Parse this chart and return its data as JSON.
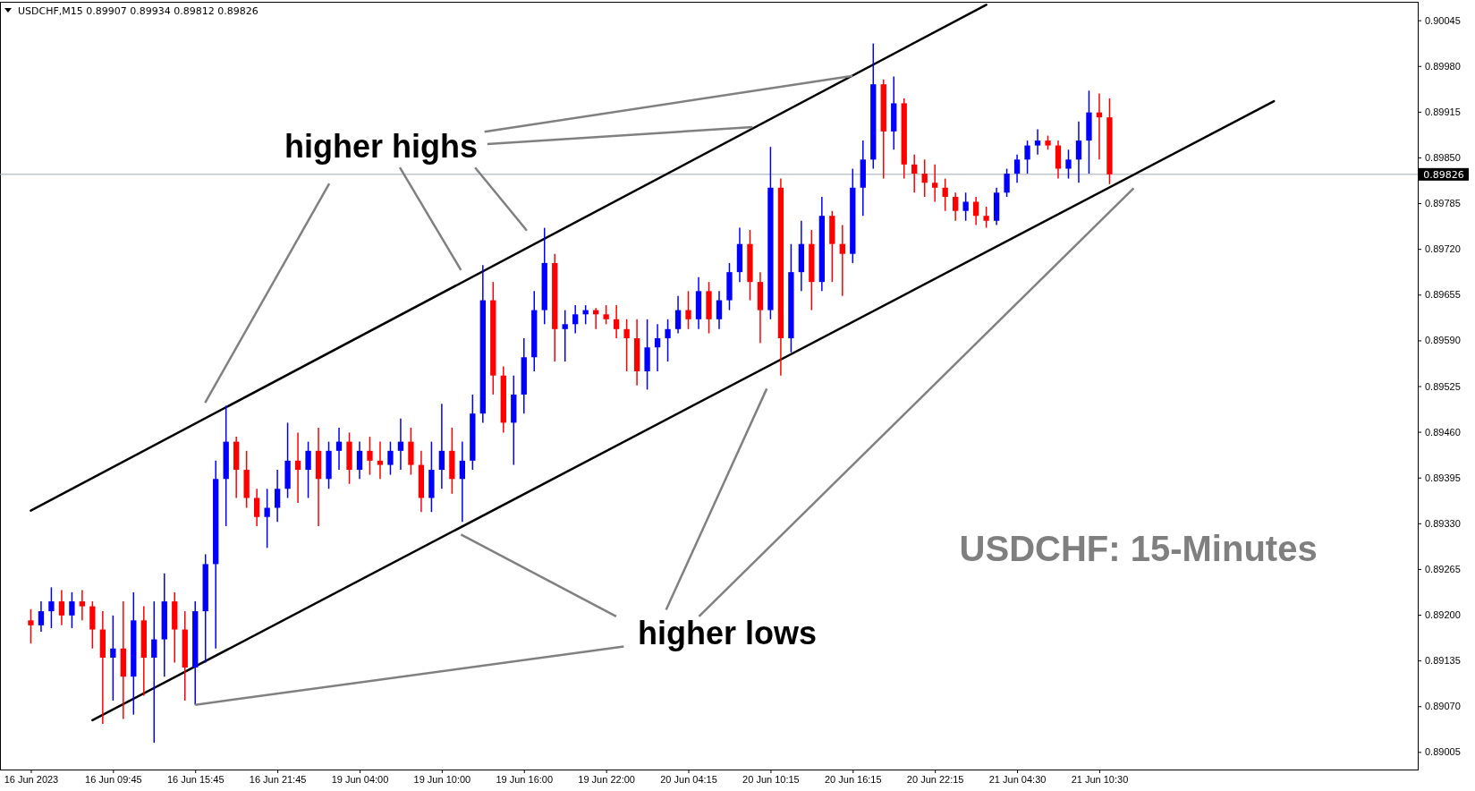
{
  "chart_data": {
    "type": "candlestick",
    "title": "USDCHF,M15  0.89907 0.89934 0.89812 0.89826",
    "annotations": [
      {
        "text": "higher highs",
        "x": "20 Jun 16:15",
        "y": 0.89966
      },
      {
        "text": "higher lows",
        "x": "16 Jun 15:45",
        "y": 0.89072
      },
      "USDCHF: 15-Minutes"
    ],
    "categories": [
      "16 Jun 2023",
      null,
      null,
      null,
      null,
      null,
      null,
      null,
      "16 Jun 09:45",
      null,
      null,
      null,
      null,
      null,
      null,
      null,
      "16 Jun 15:45",
      null,
      null,
      null,
      null,
      null,
      null,
      null,
      "16 Jun 21:45",
      null,
      null,
      null,
      null,
      null,
      null,
      null,
      "19 Jun 04:00",
      null,
      null,
      null,
      null,
      null,
      null,
      null,
      "19 Jun 10:00",
      null,
      null,
      null,
      null,
      null,
      null,
      null,
      "19 Jun 16:00",
      null,
      null,
      null,
      null,
      null,
      null,
      null,
      "19 Jun 22:00",
      null,
      null,
      null,
      null,
      null,
      null,
      null,
      "20 Jun 04:15",
      null,
      null,
      null,
      null,
      null,
      null,
      null,
      "20 Jun 10:15",
      null,
      null,
      null,
      null,
      null,
      null,
      null,
      "20 Jun 16:15",
      null,
      null,
      null,
      null,
      null,
      null,
      null,
      "20 Jun 22:15",
      null,
      null,
      null,
      null,
      null,
      null,
      null,
      "21 Jun 04:30",
      null,
      null,
      null,
      null,
      null,
      null,
      null,
      "21 Jun 10:30",
      null,
      null,
      null,
      null,
      null,
      null,
      null,
      null,
      null,
      null,
      null,
      null,
      null,
      null,
      null,
      null,
      null,
      null,
      null,
      null,
      null,
      null,
      null,
      null,
      null,
      null,
      null,
      null
    ],
    "ohlc": [
      [
        0.89192,
        0.89208,
        0.89159,
        0.89185
      ],
      [
        0.89185,
        0.89219,
        0.89176,
        0.89205
      ],
      [
        0.89205,
        0.89239,
        0.89181,
        0.89219
      ],
      [
        0.89219,
        0.89235,
        0.89185,
        0.89199
      ],
      [
        0.89199,
        0.89232,
        0.89181,
        0.89219
      ],
      [
        0.89219,
        0.89235,
        0.89192,
        0.89212
      ],
      [
        0.89212,
        0.89219,
        0.89152,
        0.89179
      ],
      [
        0.89179,
        0.89205,
        0.89045,
        0.89139
      ],
      [
        0.89139,
        0.89199,
        0.89078,
        0.89152
      ],
      [
        0.89152,
        0.89219,
        0.89052,
        0.89112
      ],
      [
        0.89112,
        0.89232,
        0.89058,
        0.89192
      ],
      [
        0.89192,
        0.89212,
        0.89085,
        0.89139
      ],
      [
        0.89139,
        0.89219,
        0.89018,
        0.89165
      ],
      [
        0.89165,
        0.89259,
        0.89112,
        0.89219
      ],
      [
        0.89219,
        0.89232,
        0.89132,
        0.89179
      ],
      [
        0.89179,
        0.89205,
        0.89078,
        0.89125
      ],
      [
        0.89125,
        0.89219,
        0.89072,
        0.89205
      ],
      [
        0.89205,
        0.89286,
        0.89132,
        0.89272
      ],
      [
        0.89272,
        0.89419,
        0.89152,
        0.89393
      ],
      [
        0.89393,
        0.89497,
        0.89326,
        0.89446
      ],
      [
        0.89446,
        0.89453,
        0.89366,
        0.89406
      ],
      [
        0.89406,
        0.89433,
        0.89352,
        0.89366
      ],
      [
        0.89366,
        0.89379,
        0.89326,
        0.89339
      ],
      [
        0.89339,
        0.89379,
        0.89295,
        0.89352
      ],
      [
        0.89352,
        0.89406,
        0.89332,
        0.89379
      ],
      [
        0.89379,
        0.89473,
        0.89366,
        0.89419
      ],
      [
        0.89419,
        0.89459,
        0.89359,
        0.89406
      ],
      [
        0.89406,
        0.89446,
        0.89366,
        0.89433
      ],
      [
        0.89433,
        0.89466,
        0.89326,
        0.89393
      ],
      [
        0.89393,
        0.89446,
        0.89379,
        0.89433
      ],
      [
        0.89433,
        0.89466,
        0.89406,
        0.89446
      ],
      [
        0.89446,
        0.89459,
        0.89386,
        0.89406
      ],
      [
        0.89406,
        0.89446,
        0.89393,
        0.89433
      ],
      [
        0.89433,
        0.89453,
        0.89399,
        0.89419
      ],
      [
        0.89419,
        0.89446,
        0.89393,
        0.89413
      ],
      [
        0.89413,
        0.89446,
        0.89399,
        0.89433
      ],
      [
        0.89433,
        0.89479,
        0.89406,
        0.89446
      ],
      [
        0.89446,
        0.89466,
        0.89399,
        0.89413
      ],
      [
        0.89413,
        0.89433,
        0.89346,
        0.89366
      ],
      [
        0.89366,
        0.89446,
        0.89346,
        0.89406
      ],
      [
        0.89406,
        0.895,
        0.89379,
        0.89433
      ],
      [
        0.89433,
        0.89466,
        0.89372,
        0.89393
      ],
      [
        0.89393,
        0.89446,
        0.89332,
        0.89419
      ],
      [
        0.89419,
        0.89513,
        0.89406,
        0.89486
      ],
      [
        0.89486,
        0.89697,
        0.89473,
        0.89647
      ],
      [
        0.89647,
        0.89673,
        0.89513,
        0.8954
      ],
      [
        0.8954,
        0.89553,
        0.89459,
        0.89473
      ],
      [
        0.89473,
        0.8954,
        0.89413,
        0.89513
      ],
      [
        0.89513,
        0.89593,
        0.89486,
        0.89566
      ],
      [
        0.89566,
        0.8966,
        0.89546,
        0.89633
      ],
      [
        0.89633,
        0.8975,
        0.89613,
        0.897
      ],
      [
        0.897,
        0.89713,
        0.8956,
        0.89606
      ],
      [
        0.89606,
        0.89633,
        0.8956,
        0.89613
      ],
      [
        0.89613,
        0.8964,
        0.896,
        0.89627
      ],
      [
        0.89627,
        0.8964,
        0.89613,
        0.89633
      ],
      [
        0.89633,
        0.89636,
        0.89606,
        0.89627
      ],
      [
        0.89627,
        0.8964,
        0.89613,
        0.8962
      ],
      [
        0.8962,
        0.8964,
        0.89593,
        0.89606
      ],
      [
        0.89606,
        0.8962,
        0.89546,
        0.89593
      ],
      [
        0.89593,
        0.8962,
        0.89526,
        0.89546
      ],
      [
        0.89546,
        0.8962,
        0.8952,
        0.8958
      ],
      [
        0.8958,
        0.89613,
        0.89546,
        0.89593
      ],
      [
        0.89593,
        0.8962,
        0.8956,
        0.89606
      ],
      [
        0.89606,
        0.89653,
        0.896,
        0.89633
      ],
      [
        0.89633,
        0.8966,
        0.89606,
        0.8962
      ],
      [
        0.8962,
        0.8968,
        0.89606,
        0.8966
      ],
      [
        0.8966,
        0.89673,
        0.896,
        0.8962
      ],
      [
        0.8962,
        0.8966,
        0.89606,
        0.89647
      ],
      [
        0.89647,
        0.897,
        0.89633,
        0.89687
      ],
      [
        0.89687,
        0.8975,
        0.89673,
        0.89727
      ],
      [
        0.89727,
        0.89747,
        0.89647,
        0.89673
      ],
      [
        0.89673,
        0.89687,
        0.89586,
        0.89633
      ],
      [
        0.89633,
        0.89865,
        0.8962,
        0.89807
      ],
      [
        0.89807,
        0.8982,
        0.8954,
        0.89593
      ],
      [
        0.89593,
        0.89727,
        0.89573,
        0.89687
      ],
      [
        0.89687,
        0.8976,
        0.8966,
        0.89727
      ],
      [
        0.89727,
        0.89747,
        0.89633,
        0.89673
      ],
      [
        0.89673,
        0.89794,
        0.8966,
        0.89767
      ],
      [
        0.89767,
        0.89774,
        0.89673,
        0.89727
      ],
      [
        0.89727,
        0.89754,
        0.89653,
        0.89713
      ],
      [
        0.89713,
        0.89834,
        0.897,
        0.89807
      ],
      [
        0.89807,
        0.89874,
        0.89767,
        0.89847
      ],
      [
        0.89847,
        0.90012,
        0.89834,
        0.89954
      ],
      [
        0.89954,
        0.89961,
        0.8982,
        0.89887
      ],
      [
        0.89887,
        0.89965,
        0.89861,
        0.89927
      ],
      [
        0.89927,
        0.89934,
        0.8982,
        0.8984
      ],
      [
        0.8984,
        0.89854,
        0.898,
        0.89827
      ],
      [
        0.89827,
        0.89847,
        0.89794,
        0.89814
      ],
      [
        0.89814,
        0.8984,
        0.89787,
        0.89807
      ],
      [
        0.89807,
        0.8982,
        0.89774,
        0.89794
      ],
      [
        0.89794,
        0.898,
        0.8976,
        0.89774
      ],
      [
        0.89774,
        0.898,
        0.8976,
        0.89787
      ],
      [
        0.89787,
        0.89794,
        0.89754,
        0.89767
      ],
      [
        0.89767,
        0.8978,
        0.8975,
        0.8976
      ],
      [
        0.8976,
        0.89807,
        0.89754,
        0.898
      ],
      [
        0.898,
        0.89834,
        0.89794,
        0.89827
      ],
      [
        0.89827,
        0.89854,
        0.89814,
        0.89847
      ],
      [
        0.89847,
        0.89874,
        0.89827,
        0.89867
      ],
      [
        0.89867,
        0.8989,
        0.89854,
        0.89874
      ],
      [
        0.89874,
        0.89881,
        0.89861,
        0.89867
      ],
      [
        0.89867,
        0.89874,
        0.8982,
        0.89834
      ],
      [
        0.89834,
        0.89861,
        0.8982,
        0.89847
      ],
      [
        0.89847,
        0.89901,
        0.89814,
        0.89874
      ],
      [
        0.89874,
        0.89945,
        0.89827,
        0.89914
      ],
      [
        0.89914,
        0.89941,
        0.89847,
        0.89907
      ],
      [
        0.89907,
        0.89934,
        0.89812,
        0.89826
      ],
      null,
      null,
      null,
      null,
      null,
      null,
      null,
      null,
      null,
      null,
      null,
      null,
      null,
      null,
      null,
      null,
      null,
      null,
      null,
      null,
      null,
      null,
      null,
      null,
      null,
      null,
      null
    ],
    "colors": [
      "#ff0000",
      "#0000ff",
      "#0000ff",
      "#ff0000",
      "#0000ff",
      "#ff0000",
      "#ff0000",
      "#ff0000",
      "#0000ff",
      "#ff0000",
      "#0000ff",
      "#ff0000",
      "#0000ff",
      "#0000ff",
      "#ff0000",
      "#ff0000",
      "#0000ff",
      "#0000ff",
      "#0000ff",
      "#0000ff",
      "#ff0000",
      "#ff0000",
      "#ff0000",
      "#0000ff",
      "#0000ff",
      "#0000ff",
      "#ff0000",
      "#0000ff",
      "#ff0000",
      "#0000ff",
      "#0000ff",
      "#ff0000",
      "#0000ff",
      "#ff0000",
      "#ff0000",
      "#0000ff",
      "#0000ff",
      "#ff0000",
      "#ff0000",
      "#0000ff",
      "#0000ff",
      "#ff0000",
      "#0000ff",
      "#0000ff",
      "#0000ff",
      "#ff0000",
      "#ff0000",
      "#0000ff",
      "#0000ff",
      "#0000ff",
      "#0000ff",
      "#ff0000",
      "#0000ff",
      "#0000ff",
      "#0000ff",
      "#ff0000",
      "#ff0000",
      "#ff0000",
      "#ff0000",
      "#ff0000",
      "#0000ff",
      "#0000ff",
      "#0000ff",
      "#0000ff",
      "#ff0000",
      "#0000ff",
      "#ff0000",
      "#0000ff",
      "#0000ff",
      "#0000ff",
      "#ff0000",
      "#ff0000",
      "#0000ff",
      "#ff0000",
      "#0000ff",
      "#0000ff",
      "#ff0000",
      "#0000ff",
      "#ff0000",
      "#ff0000",
      "#0000ff",
      "#0000ff",
      "#0000ff",
      "#ff0000",
      "#0000ff",
      "#ff0000",
      "#ff0000",
      "#ff0000",
      "#ff0000",
      "#ff0000",
      "#ff0000",
      "#0000ff",
      "#ff0000",
      "#ff0000",
      "#0000ff",
      "#0000ff",
      "#0000ff",
      "#0000ff",
      "#0000ff",
      "#ff0000",
      "#ff0000",
      "#0000ff",
      "#0000ff",
      "#0000ff",
      "#ff0000",
      "#ff0000",
      null,
      null,
      null,
      null,
      null,
      null,
      null,
      null,
      null,
      null,
      null,
      null,
      null,
      null,
      null,
      null,
      null,
      null,
      null,
      null,
      null,
      null,
      null,
      null,
      null,
      null,
      null
    ],
    "series": [
      {
        "type": "line",
        "color": "#000000",
        "values": [
          0.89348,
          null,
          null,
          null,
          null,
          null,
          null,
          null,
          null,
          null,
          null,
          null,
          null,
          null,
          null,
          null,
          null,
          null,
          null,
          null,
          null,
          null,
          null,
          null,
          null,
          null,
          null,
          null,
          null,
          null,
          null,
          null,
          null,
          null,
          null,
          null,
          null,
          null,
          null,
          null,
          null,
          null,
          null,
          null,
          null,
          null,
          null,
          null,
          null,
          null,
          null,
          null,
          null,
          null,
          null,
          null,
          null,
          null,
          null,
          null,
          null,
          null,
          null,
          null,
          null,
          null,
          null,
          null,
          null,
          null,
          null,
          null,
          null,
          null,
          null,
          null,
          null,
          null,
          null,
          null,
          null,
          null,
          null,
          null,
          null,
          null,
          null,
          null,
          null,
          null,
          null,
          null,
          null,
          0.90067,
          null,
          null,
          null,
          null,
          null,
          null,
          null,
          null,
          null,
          null,
          null,
          null,
          null,
          null,
          null,
          null,
          null,
          null,
          null,
          null,
          null,
          null,
          null,
          null,
          null,
          null,
          null,
          null,
          null,
          null,
          null,
          null,
          null,
          null,
          null,
          null,
          null,
          null,
          null
        ]
      },
      {
        "type": "line",
        "color": "#000000",
        "values": [
          null,
          null,
          null,
          null,
          null,
          null,
          0.8905,
          null,
          null,
          null,
          null,
          null,
          null,
          null,
          null,
          null,
          null,
          null,
          null,
          null,
          null,
          null,
          null,
          null,
          null,
          null,
          null,
          null,
          null,
          null,
          null,
          null,
          null,
          null,
          null,
          null,
          null,
          null,
          null,
          null,
          null,
          null,
          null,
          null,
          null,
          null,
          null,
          null,
          null,
          null,
          null,
          null,
          null,
          null,
          null,
          null,
          null,
          null,
          null,
          null,
          null,
          null,
          null,
          null,
          null,
          null,
          null,
          null,
          null,
          null,
          null,
          null,
          null,
          null,
          null,
          null,
          null,
          null,
          null,
          null,
          null,
          null,
          null,
          null,
          null,
          null,
          null,
          null,
          null,
          null,
          null,
          null,
          null,
          null,
          null,
          null,
          null,
          null,
          null,
          null,
          null,
          null,
          null,
          null,
          null,
          null,
          null,
          null,
          null,
          null,
          null,
          null,
          null,
          null,
          null,
          null,
          null,
          null,
          null,
          null,
          null,
          0.8993,
          null,
          null,
          null,
          null,
          null,
          null,
          null,
          null,
          null,
          null,
          null
        ]
      }
    ],
    "ylim": [
      0.8898,
      0.9007
    ],
    "yticks": [
      0.89005,
      {
        "value": 0.8907,
        "label": "0.89070"
      },
      0.89135,
      {
        "value": 0.892,
        "label": "0.89200"
      },
      0.89265,
      {
        "value": 0.8933,
        "label": "0.89330"
      },
      0.89395,
      {
        "value": 0.8946,
        "label": "0.89460"
      },
      0.89525,
      {
        "value": 0.8959,
        "label": "0.89590"
      },
      0.89655,
      {
        "value": 0.8972,
        "label": "0.89720"
      },
      0.89785,
      {
        "value": 0.8985,
        "label": "0.89850"
      },
      0.89915,
      {
        "value": 0.8998,
        "label": "0.89980"
      },
      0.90045
    ],
    "ref_lines": [
      {
        "axis": "y",
        "value": 0.89826,
        "label": "0.89826",
        "color": "#a0aab4"
      }
    ],
    "grid": false
  }
}
